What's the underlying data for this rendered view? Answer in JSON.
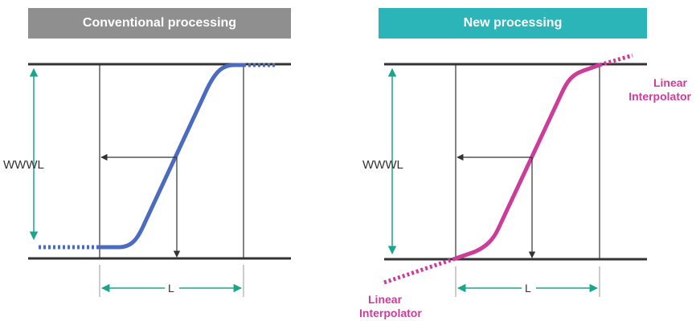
{
  "panels": {
    "left": {
      "title": "Conventional processing",
      "header_color": "#8f8f8f"
    },
    "right": {
      "title": "New processing",
      "header_color": "#2bb5b8"
    }
  },
  "labels": {
    "window_axis": "WWWL",
    "level_axis": "L",
    "interp_line1": "Linear",
    "interp_line2": "Interpolator"
  },
  "colors": {
    "conventional_curve": "#4a6bc1",
    "new_curve": "#cc3d99",
    "dimension_arrow": "#1aa68c",
    "frame": "#333333"
  }
}
